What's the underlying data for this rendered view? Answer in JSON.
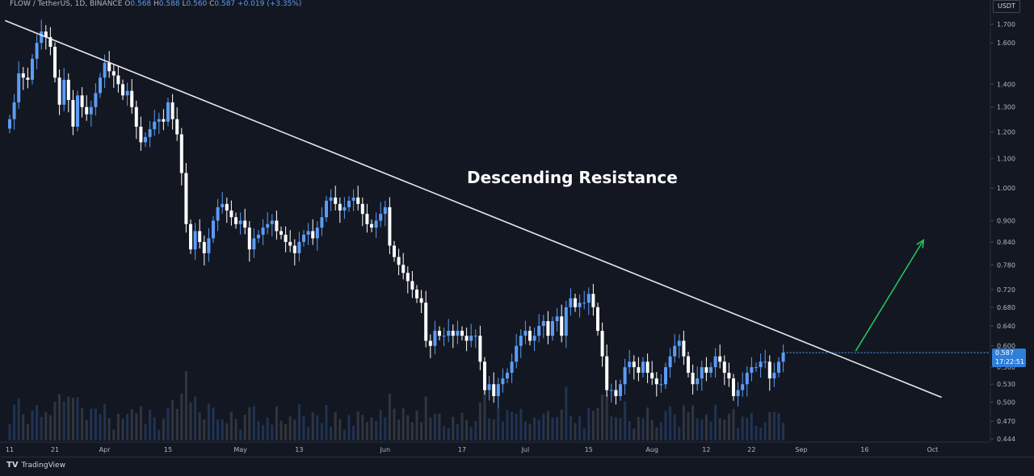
{
  "legend": {
    "symbol": "FLOW / TetherUS, 1D, BINANCE",
    "o_label": "O",
    "o": "0.568",
    "h_label": "H",
    "h": "0.588",
    "l_label": "L",
    "l": "0.560",
    "c_label": "C",
    "c": "0.587",
    "change": "+0.019 (+3.35%)"
  },
  "currency_button": "USDT",
  "last_price": "0.587",
  "countdown": "17:22:51",
  "brand": "TradingView",
  "brand_logo": "TV",
  "annotation": "Descending Resistance",
  "colors": {
    "background": "#131722",
    "up": "#5b9cf6",
    "down": "#ffffff",
    "trendline": "#e8e8e8",
    "arrow": "#22c55e"
  },
  "chart_data": {
    "type": "candlestick",
    "title": "FLOW / TetherUS, 1D, BINANCE",
    "y_axis": {
      "scale": "log",
      "ticks": [
        1.7,
        1.6,
        1.4,
        1.3,
        1.2,
        1.1,
        1.0,
        0.9,
        0.84,
        0.78,
        0.72,
        0.68,
        0.64,
        0.6,
        0.56,
        0.53,
        0.5,
        0.47,
        0.444
      ],
      "tick_labels": [
        "1.700",
        "1.600",
        "1.400",
        "1.300",
        "1.200",
        "1.100",
        "1.000",
        "0.900",
        "0.840",
        "0.780",
        "0.720",
        "0.680",
        "0.640",
        "0.600",
        "0.560",
        "0.530",
        "0.500",
        "0.470",
        "0.444"
      ],
      "range": [
        0.444,
        1.74
      ]
    },
    "x_axis": {
      "labels": [
        "11",
        "21",
        "Apr",
        "15",
        "May",
        "13",
        "Jun",
        "17",
        "Jul",
        "15",
        "Aug",
        "12",
        "22",
        "Sep",
        "16",
        "Oct"
      ],
      "label_days": [
        0,
        10,
        21,
        35,
        51,
        64,
        83,
        100,
        114,
        128,
        142,
        154,
        164,
        175,
        189,
        204
      ]
    },
    "close_series_start_day": 0,
    "closes": [
      1.25,
      1.32,
      1.45,
      1.43,
      1.42,
      1.52,
      1.6,
      1.66,
      1.63,
      1.58,
      1.43,
      1.31,
      1.42,
      1.33,
      1.22,
      1.35,
      1.3,
      1.27,
      1.3,
      1.36,
      1.43,
      1.5,
      1.46,
      1.44,
      1.4,
      1.35,
      1.37,
      1.3,
      1.22,
      1.16,
      1.18,
      1.21,
      1.24,
      1.25,
      1.24,
      1.32,
      1.25,
      1.19,
      1.05,
      0.89,
      0.82,
      0.87,
      0.84,
      0.81,
      0.85,
      0.9,
      0.94,
      0.95,
      0.93,
      0.91,
      0.89,
      0.9,
      0.88,
      0.82,
      0.85,
      0.86,
      0.88,
      0.89,
      0.9,
      0.87,
      0.86,
      0.84,
      0.83,
      0.81,
      0.84,
      0.86,
      0.87,
      0.85,
      0.88,
      0.91,
      0.96,
      0.97,
      0.95,
      0.93,
      0.94,
      0.96,
      0.97,
      0.95,
      0.92,
      0.89,
      0.88,
      0.9,
      0.92,
      0.94,
      0.83,
      0.8,
      0.78,
      0.76,
      0.74,
      0.72,
      0.7,
      0.69,
      0.61,
      0.6,
      0.63,
      0.62,
      0.62,
      0.63,
      0.62,
      0.63,
      0.62,
      0.61,
      0.62,
      0.62,
      0.57,
      0.52,
      0.53,
      0.51,
      0.53,
      0.54,
      0.55,
      0.57,
      0.6,
      0.62,
      0.63,
      0.61,
      0.62,
      0.64,
      0.65,
      0.62,
      0.65,
      0.66,
      0.62,
      0.68,
      0.7,
      0.68,
      0.69,
      0.69,
      0.71,
      0.68,
      0.63,
      0.58,
      0.52,
      0.52,
      0.51,
      0.53,
      0.56,
      0.57,
      0.56,
      0.55,
      0.57,
      0.55,
      0.54,
      0.53,
      0.53,
      0.56,
      0.58,
      0.6,
      0.61,
      0.58,
      0.55,
      0.53,
      0.54,
      0.56,
      0.55,
      0.56,
      0.58,
      0.57,
      0.55,
      0.54,
      0.51,
      0.52,
      0.53,
      0.55,
      0.56,
      0.56,
      0.57,
      0.57,
      0.54,
      0.55,
      0.57,
      0.587
    ],
    "trendline": {
      "start": {
        "day": -1,
        "price": 1.72
      },
      "end": {
        "day": 206,
        "price": 0.508
      }
    },
    "arrow": {
      "start": {
        "day": 187,
        "price": 0.59
      },
      "end": {
        "day": 202,
        "price": 0.845
      }
    },
    "volume_bars_shown": true,
    "last_price": 0.587
  }
}
